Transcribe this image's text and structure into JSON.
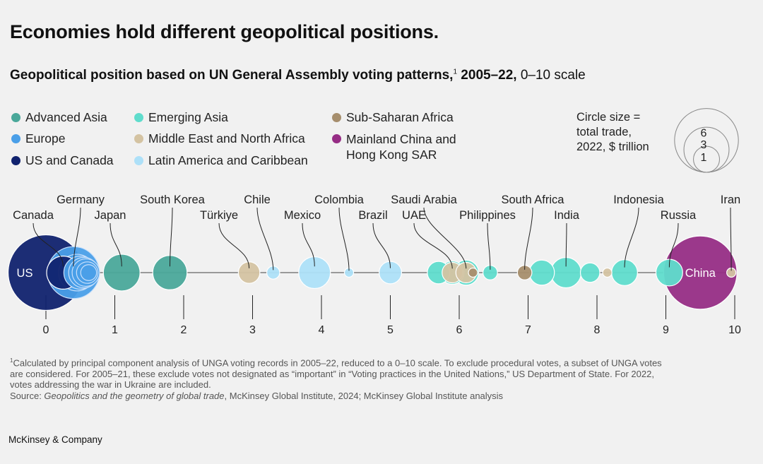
{
  "title": "Economies hold different geopolitical positions.",
  "subtitle": {
    "main": "Geopolitical position based on UN General Assembly voting patterns,",
    "note_mark": "1",
    "years": " 2005–22,",
    "scale": " 0–10 scale"
  },
  "legend": [
    {
      "label": "Advanced Asia",
      "color": "#4aa89a"
    },
    {
      "label": "Europe",
      "color": "#4a9fe8"
    },
    {
      "label": "US and Canada",
      "color": "#10226e"
    },
    {
      "label": "Emerging Asia",
      "color": "#5fdccc"
    },
    {
      "label": "Middle East and North Africa",
      "color": "#d4c3a2"
    },
    {
      "label": "Latin America and Caribbean",
      "color": "#ade0f8"
    },
    {
      "label": "Sub-Saharan Africa",
      "color": "#a68e6d"
    },
    {
      "label": "Mainland China and Hong Kong SAR",
      "line1": "Mainland China and",
      "line2": "Hong Kong SAR",
      "color": "#962d85"
    }
  ],
  "size_legend": {
    "line1": "Circle size =",
    "line2": "total trade,",
    "line3": "2022, $ trillion",
    "values": [
      1,
      3,
      6
    ]
  },
  "chart_data": {
    "type": "scatter",
    "title": "Geopolitical position based on UN General Assembly voting patterns, 2005–22, 0–10 scale",
    "xlabel": "",
    "ylabel": "",
    "xlim": [
      0,
      10
    ],
    "ticks": [
      0,
      1,
      2,
      3,
      4,
      5,
      6,
      7,
      8,
      9,
      10
    ],
    "size_encoding": "total trade, 2022, $ trillion",
    "points": [
      {
        "name": "US",
        "label": "US",
        "label_inside": true,
        "x": 0.0,
        "trade": 6.8,
        "region": "US and Canada"
      },
      {
        "name": "Canada",
        "label": "Canada",
        "x": 0.25,
        "trade": 1.3,
        "region": "US and Canada"
      },
      {
        "name": "Germany",
        "label": "Germany",
        "x": 0.4,
        "trade": 3.2,
        "region": "Europe"
      },
      {
        "name": "Europe-2",
        "x": 0.45,
        "trade": 1.6,
        "region": "Europe"
      },
      {
        "name": "Europe-3",
        "x": 0.5,
        "trade": 1.3,
        "region": "Europe"
      },
      {
        "name": "Europe-4",
        "x": 0.55,
        "trade": 1.1,
        "region": "Europe"
      },
      {
        "name": "Europe-5",
        "x": 0.58,
        "trade": 0.9,
        "region": "Europe"
      },
      {
        "name": "Europe-6",
        "x": 0.6,
        "trade": 0.55,
        "region": "Europe"
      },
      {
        "name": "Europe-7",
        "x": 0.62,
        "trade": 0.3,
        "region": "Europe"
      },
      {
        "name": "Japan",
        "label": "Japan",
        "x": 1.1,
        "trade": 1.6,
        "region": "Advanced Asia"
      },
      {
        "name": "South Korea",
        "label": "South Korea",
        "x": 1.8,
        "trade": 1.4,
        "region": "Advanced Asia"
      },
      {
        "name": "Türkiye",
        "label": "Türkiye",
        "x": 2.95,
        "trade": 0.55,
        "region": "Middle East and North Africa"
      },
      {
        "name": "Chile",
        "label": "Chile",
        "x": 3.3,
        "trade": 0.2,
        "region": "Latin America and Caribbean"
      },
      {
        "name": "Mexico",
        "label": "Mexico",
        "x": 3.9,
        "trade": 1.2,
        "region": "Latin America and Caribbean"
      },
      {
        "name": "Colombia",
        "label": "Colombia",
        "x": 4.4,
        "trade": 0.1,
        "region": "Latin America and Caribbean"
      },
      {
        "name": "Brazil",
        "label": "Brazil",
        "x": 5.0,
        "trade": 0.6,
        "region": "Latin America and Caribbean"
      },
      {
        "name": "Emerging Asia A",
        "x": 5.7,
        "trade": 0.6,
        "region": "Emerging Asia"
      },
      {
        "name": "Emerging Asia B",
        "x": 5.9,
        "trade": 0.65,
        "region": "Emerging Asia"
      },
      {
        "name": "UAE",
        "label": "UAE",
        "x": 5.9,
        "trade": 0.5,
        "region": "Middle East and North Africa"
      },
      {
        "name": "Saudi Arabia",
        "label": "Saudi Arabia",
        "x": 6.1,
        "trade": 0.5,
        "region": "Middle East and North Africa"
      },
      {
        "name": "Emerging Asia C",
        "x": 6.1,
        "trade": 0.75,
        "region": "Emerging Asia"
      },
      {
        "name": "Sub-Saharan A",
        "x": 6.2,
        "trade": 0.1,
        "region": "Sub-Saharan Africa"
      },
      {
        "name": "Philippines",
        "label": "Philippines",
        "x": 6.45,
        "trade": 0.25,
        "region": "Emerging Asia"
      },
      {
        "name": "South Africa",
        "label": "South Africa",
        "x": 6.95,
        "trade": 0.25,
        "region": "Sub-Saharan Africa"
      },
      {
        "name": "Emerging Asia D",
        "x": 7.2,
        "trade": 0.75,
        "region": "Emerging Asia"
      },
      {
        "name": "India",
        "label": "India",
        "x": 7.55,
        "trade": 1.1,
        "region": "Emerging Asia"
      },
      {
        "name": "Emerging Asia E",
        "x": 7.9,
        "trade": 0.45,
        "region": "Emerging Asia"
      },
      {
        "name": "Middle East B",
        "x": 8.15,
        "trade": 0.1,
        "region": "Middle East and North Africa"
      },
      {
        "name": "Indonesia",
        "label": "Indonesia",
        "x": 8.4,
        "trade": 0.8,
        "region": "Emerging Asia"
      },
      {
        "name": "Russia",
        "label": "Russia",
        "x": 9.05,
        "trade": 0.85,
        "region": "Emerging Asia"
      },
      {
        "name": "China",
        "label": "China",
        "label_inside": true,
        "x": 9.5,
        "trade": 6.4,
        "region": "Mainland China and Hong Kong SAR"
      },
      {
        "name": "Iran",
        "label": "Iran",
        "x": 9.95,
        "trade": 0.1,
        "region": "Middle East and North Africa"
      }
    ]
  },
  "footnote": {
    "line1": "Calculated by principal component analysis of UNGA voting records in 2005–22, reduced to a 0–10 scale. To exclude procedural votes, a subset of UNGA votes",
    "line2": "are considered. For 2005–21, these exclude votes not designated as “important” in “Voting practices in the United Nations,” US Department of State. For 2022,",
    "line3": "votes addressing the war in Ukraine are included.",
    "source_prefix": "Source: ",
    "source_title": "Geopolitics and the geometry of global trade",
    "source_rest": ", McKinsey Global Institute, 2024; McKinsey Global Institute analysis"
  },
  "brand": "McKinsey & Company"
}
